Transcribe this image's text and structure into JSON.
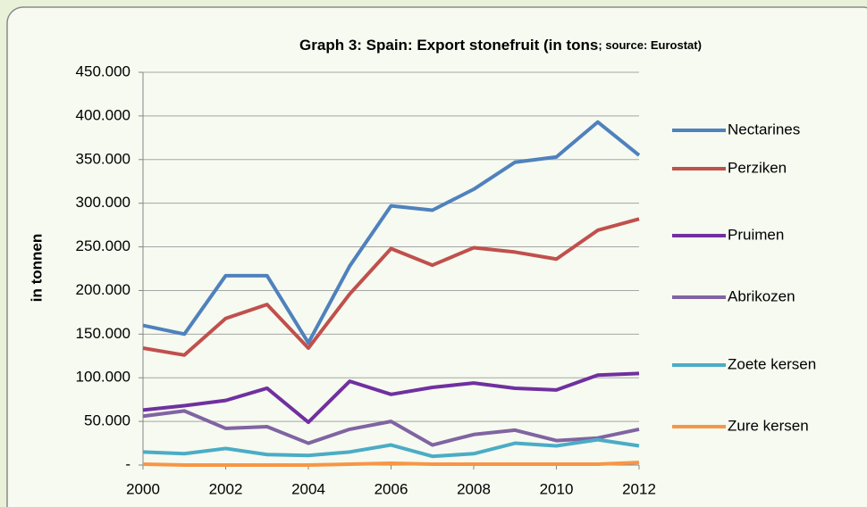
{
  "chart_data": {
    "type": "line",
    "title": "Graph 3: Spain: Export stonefruit (in tons",
    "subtitle": "; source: Eurostat)",
    "y_label": "in tonnen",
    "x": [
      2000,
      2001,
      2002,
      2003,
      2004,
      2005,
      2006,
      2007,
      2008,
      2009,
      2010,
      2011,
      2012
    ],
    "xlim": [
      2000,
      2012
    ],
    "xticks": [
      2000,
      2002,
      2004,
      2006,
      2008,
      2010,
      2012
    ],
    "ylim": [
      0,
      450000
    ],
    "yticks": [
      {
        "value": 0,
        "label": "-"
      },
      {
        "value": 50000,
        "label": "50.000"
      },
      {
        "value": 100000,
        "label": "100.000"
      },
      {
        "value": 150000,
        "label": "150.000"
      },
      {
        "value": 200000,
        "label": "200.000"
      },
      {
        "value": 250000,
        "label": "250.000"
      },
      {
        "value": 300000,
        "label": "300.000"
      },
      {
        "value": 350000,
        "label": "350.000"
      },
      {
        "value": 400000,
        "label": "400.000"
      },
      {
        "value": 450000,
        "label": "450.000"
      }
    ],
    "grid": true,
    "legend": "right",
    "series": [
      {
        "name": "Nectarines",
        "color": "#4f81bd",
        "values": [
          160000,
          150000,
          217000,
          217000,
          140000,
          228000,
          297000,
          292000,
          316000,
          347000,
          353000,
          393000,
          355000
        ]
      },
      {
        "name": "Perziken",
        "color": "#c0504d",
        "values": [
          134000,
          126000,
          168000,
          184000,
          134000,
          196000,
          248000,
          229000,
          249000,
          244000,
          236000,
          269000,
          282000
        ]
      },
      {
        "name": "Pruimen",
        "color": "#7030a0",
        "values": [
          63000,
          68000,
          74000,
          88000,
          49000,
          96000,
          81000,
          89000,
          94000,
          88000,
          86000,
          103000,
          105000
        ]
      },
      {
        "name": "Abrikozen",
        "color": "#8064a2",
        "values": [
          56000,
          62000,
          42000,
          44000,
          25000,
          41000,
          50000,
          23000,
          35000,
          40000,
          28000,
          31000,
          41000
        ]
      },
      {
        "name": "Zoete kersen",
        "color": "#4bacc6",
        "values": [
          15000,
          13000,
          19000,
          12000,
          11000,
          15000,
          23000,
          10000,
          13000,
          25000,
          22000,
          29000,
          22000
        ]
      },
      {
        "name": "Zure kersen",
        "color": "#f79646",
        "values": [
          1000,
          0,
          0,
          0,
          0,
          1000,
          2000,
          1000,
          1000,
          1000,
          1000,
          1000,
          3000
        ]
      }
    ]
  }
}
